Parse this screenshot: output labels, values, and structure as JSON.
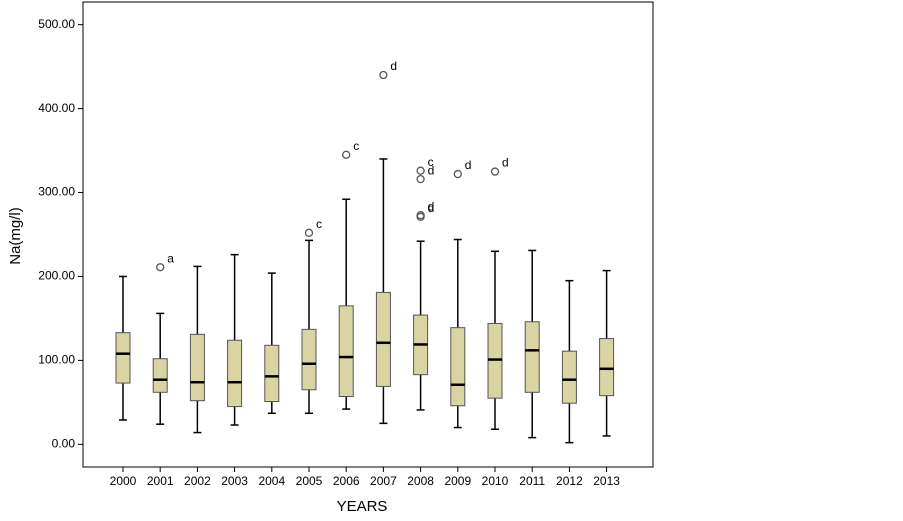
{
  "chart_data": {
    "type": "box",
    "ylabel": "Na(mg/l)",
    "xlabel": "YEARS",
    "categories": [
      "2000",
      "2001",
      "2002",
      "2003",
      "2004",
      "2005",
      "2006",
      "2007",
      "2008",
      "2009",
      "2010",
      "2011",
      "2012",
      "2013"
    ],
    "color": "#d9d4a2",
    "ylim": [
      -27,
      527
    ],
    "yticks": [
      {
        "value": 0,
        "label": "0.00"
      },
      {
        "value": 100,
        "label": "100.00"
      },
      {
        "value": 200,
        "label": "200.00"
      },
      {
        "value": 300,
        "label": "300.00"
      },
      {
        "value": 400,
        "label": "400.00"
      },
      {
        "value": 500,
        "label": "500.00"
      }
    ],
    "boxes": [
      {
        "min": 29,
        "q1": 73,
        "median": 108,
        "q3": 133,
        "max": 200,
        "outliers": []
      },
      {
        "min": 24,
        "q1": 62,
        "median": 77,
        "q3": 102,
        "max": 156,
        "outliers": [
          {
            "value": 211,
            "label": "a"
          }
        ]
      },
      {
        "min": 14,
        "q1": 52,
        "median": 74,
        "q3": 131,
        "max": 212,
        "outliers": []
      },
      {
        "min": 23,
        "q1": 45,
        "median": 74,
        "q3": 124,
        "max": 226,
        "outliers": []
      },
      {
        "min": 37,
        "q1": 51,
        "median": 81,
        "q3": 118,
        "max": 204,
        "outliers": []
      },
      {
        "min": 37,
        "q1": 65,
        "median": 96,
        "q3": 137,
        "max": 243,
        "outliers": [
          {
            "value": 252,
            "label": "c"
          }
        ]
      },
      {
        "min": 42,
        "q1": 57,
        "median": 104,
        "q3": 165,
        "max": 292,
        "outliers": [
          {
            "value": 345,
            "label": "c"
          }
        ]
      },
      {
        "min": 25,
        "q1": 69,
        "median": 121,
        "q3": 181,
        "max": 340,
        "outliers": [
          {
            "value": 440,
            "label": "d"
          }
        ]
      },
      {
        "min": 41,
        "q1": 83,
        "median": 119,
        "q3": 154,
        "max": 242,
        "outliers": [
          {
            "value": 326,
            "label": "c"
          },
          {
            "value": 316,
            "label": "d"
          },
          {
            "value": 273,
            "label": "d"
          },
          {
            "value": 271,
            "label": "d"
          }
        ]
      },
      {
        "min": 20,
        "q1": 46,
        "median": 71,
        "q3": 139,
        "max": 244,
        "outliers": [
          {
            "value": 322,
            "label": "d"
          }
        ]
      },
      {
        "min": 18,
        "q1": 55,
        "median": 101,
        "q3": 144,
        "max": 230,
        "outliers": [
          {
            "value": 325,
            "label": "d"
          }
        ]
      },
      {
        "min": 8,
        "q1": 62,
        "median": 112,
        "q3": 146,
        "max": 231,
        "outliers": []
      },
      {
        "min": 2,
        "q1": 49,
        "median": 77,
        "q3": 111,
        "max": 195,
        "outliers": []
      },
      {
        "min": 10,
        "q1": 58,
        "median": 90,
        "q3": 126,
        "max": 207,
        "outliers": []
      }
    ]
  }
}
